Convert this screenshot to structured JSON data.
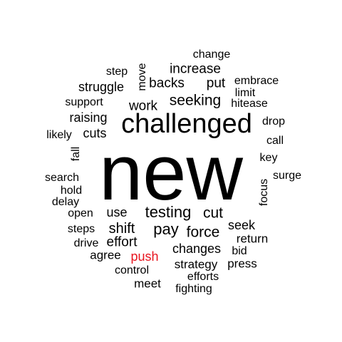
{
  "words": {
    "new": "new",
    "challenged": "challenged",
    "testing": "testing",
    "seeking": "seeking",
    "pay": "pay",
    "force": "force",
    "cut": "cut",
    "shift": "shift",
    "effort": "effort",
    "increase": "increase",
    "backs": "backs",
    "put": "put",
    "work": "work",
    "struggle": "struggle",
    "raising": "raising",
    "cuts": "cuts",
    "use": "use",
    "changes": "changes",
    "strategy": "strategy",
    "seek": "seek",
    "return": "return",
    "bid": "bid",
    "press": "press",
    "agree": "agree",
    "push": "push",
    "control": "control",
    "meet": "meet",
    "efforts": "efforts",
    "fighting": "fighting",
    "drive": "drive",
    "steps": "steps",
    "open": "open",
    "delay": "delay",
    "hold": "hold",
    "search": "search",
    "fall": "fall",
    "likely": "likely",
    "support": "support",
    "step": "step",
    "move": "move",
    "change": "change",
    "embrace": "embrace",
    "limit": "limit",
    "hitease": "hitease",
    "drop": "drop",
    "call": "call",
    "key": "key",
    "surge": "surge",
    "focus": "focus"
  },
  "colors": {
    "default_word": "#000000",
    "highlight_word": "#e8141e",
    "background": "#ffffff"
  },
  "highlighted_word": "push"
}
